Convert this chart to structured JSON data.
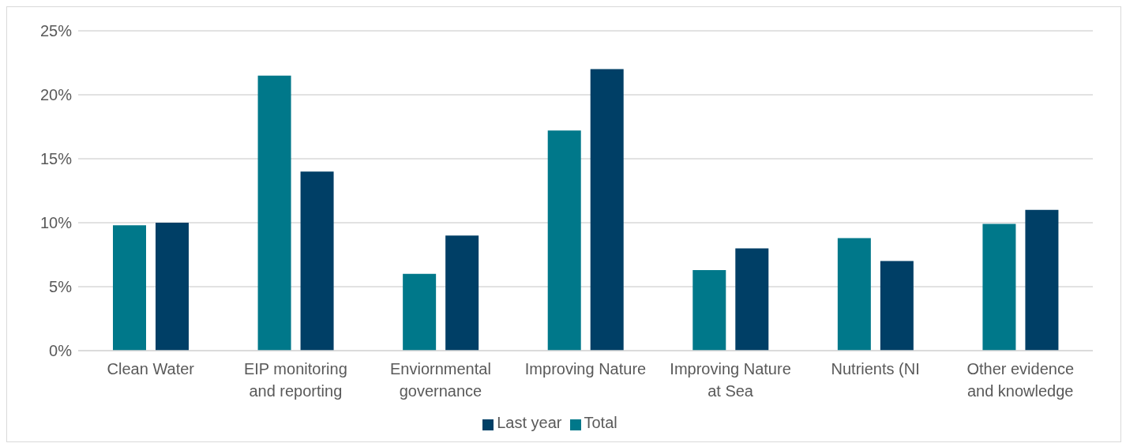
{
  "chart_data": {
    "type": "bar",
    "categories": [
      "Clean Water",
      "EIP monitoring and reporting",
      "Enviornmental governance",
      "Improving Nature",
      "Improving Nature at Sea",
      "Nutrients (NI",
      "Other evidence and knowledge"
    ],
    "series": [
      {
        "name": "Total",
        "color": "#00788a",
        "values": [
          9.8,
          21.5,
          6.0,
          17.2,
          6.3,
          8.8,
          9.9
        ]
      },
      {
        "name": "Last year",
        "color": "#003f66",
        "values": [
          10.0,
          14.0,
          9.0,
          22.0,
          8.0,
          7.0,
          11.0
        ]
      }
    ],
    "ylim": [
      0,
      25
    ],
    "yticks": [
      {
        "value": 0,
        "label": "0%"
      },
      {
        "value": 5,
        "label": "5%"
      },
      {
        "value": 10,
        "label": "10%"
      },
      {
        "value": 15,
        "label": "15%"
      },
      {
        "value": 20,
        "label": "20%"
      },
      {
        "value": 25,
        "label": "25%"
      }
    ],
    "grid": "y",
    "legend": "bottom"
  }
}
